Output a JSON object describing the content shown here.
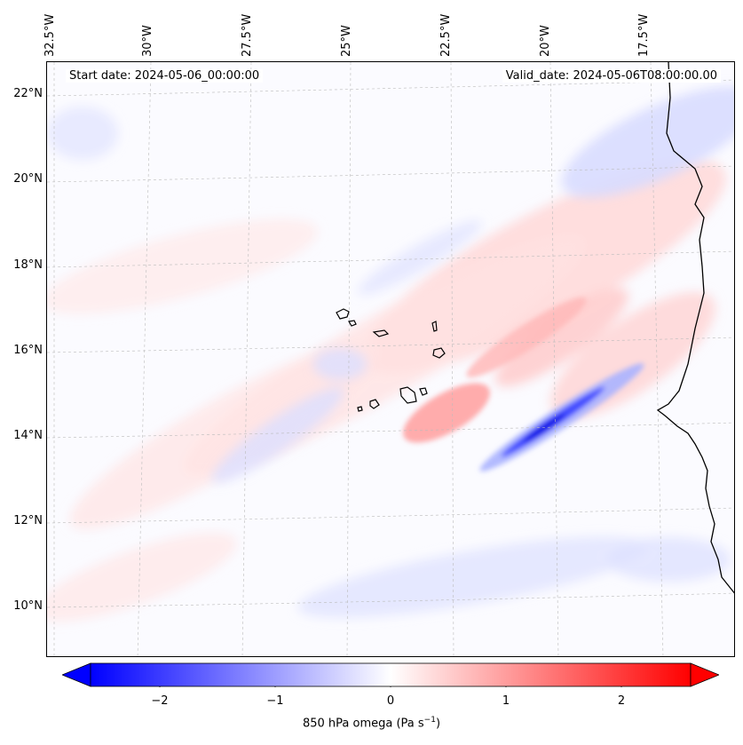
{
  "chart_data": {
    "type": "heatmap",
    "title": "",
    "variable_label": "850 hPa omega (Pa s",
    "variable_unit_exponent": "−1",
    "variable_unit_close": ")",
    "lon_ticks": [
      "32.5°W",
      "30°W",
      "27.5°W",
      "25°W",
      "22.5°W",
      "20°W",
      "17.5°W"
    ],
    "lat_ticks": [
      "22°N",
      "20°N",
      "18°N",
      "16°N",
      "14°N",
      "12°N",
      "10°N"
    ],
    "colorbar": {
      "min": -2.6,
      "max": 2.6,
      "ticks": [
        "−2",
        "−1",
        "0",
        "1",
        "2"
      ],
      "tick_values": [
        -2,
        -1,
        0,
        1,
        2
      ],
      "extend": "both",
      "cmap": "bwr"
    },
    "features": [
      {
        "name": "narrow descending band SE of islands",
        "value": -2.4
      },
      {
        "name": "ascending band near 14°N 23°W",
        "value": 0.9
      },
      {
        "name": "broad weak ascent over northern domain",
        "value": 0.4
      }
    ]
  },
  "header": {
    "start_date": "Start date: 2024-05-06_00:00:00",
    "valid_date": "Valid_date: 2024-05-06T08:00:00.00"
  },
  "colors": {
    "ocean_base": "#fbfbff",
    "coastline": "#000000",
    "grid": "#bbbbbb"
  }
}
